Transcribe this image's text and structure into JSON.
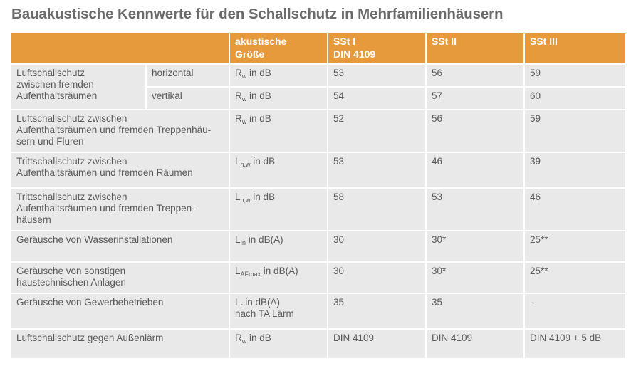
{
  "title": "Bauakustische Kennwerte für den Schallschutz in Mehrfamilienhäusern",
  "header": {
    "empty": "",
    "groesse_line1": "akustische",
    "groesse_line2": "Größe",
    "ssti_line1": "SSt I",
    "ssti_line2": "DIN 4109",
    "sstii": "SSt II",
    "sstiii": "SSt III"
  },
  "accent_color": "#e69a3b",
  "cell_color": "#e9e9e9",
  "rows": [
    {
      "label": [
        "Luftschallschutz",
        "zwischen fremden",
        "Aufenthaltsräumen"
      ],
      "sub_rows": [
        {
          "direction": "horizontal",
          "symbol": "R",
          "subscript": "w",
          "unit": "in dB",
          "ssti": "53",
          "sstii": "56",
          "sstiii": "59"
        },
        {
          "direction": "vertikal",
          "symbol": "R",
          "subscript": "w",
          "unit": "in dB",
          "ssti": "54",
          "sstii": "57",
          "sstiii": "60"
        }
      ]
    },
    {
      "label": [
        "Luftschallschutz zwischen",
        "Aufenthaltsräumen und fremden Treppenhäu-",
        "sern und Fluren"
      ],
      "symbol": "R",
      "subscript": "w",
      "unit": "in dB",
      "unit2": "",
      "ssti": "52",
      "sstii": "56",
      "sstiii": "59"
    },
    {
      "label": [
        "Trittschallschutz zwischen",
        "Aufenthaltsräumen und fremden Räumen"
      ],
      "symbol": "L",
      "subscript": "n,w",
      "unit": "in dB",
      "unit2": "",
      "ssti": "53",
      "sstii": "46",
      "sstiii": "39"
    },
    {
      "label": [
        "Trittschallschutz zwischen",
        "Aufenthaltsräumen und fremden Treppen-",
        "häusern"
      ],
      "symbol": "L",
      "subscript": "n,w",
      "unit": "in dB",
      "unit2": "",
      "ssti": "58",
      "sstii": "53",
      "sstiii": "46"
    },
    {
      "label": [
        "Geräusche von Wasserinstallationen"
      ],
      "symbol": "L",
      "subscript": "In",
      "unit": "in dB(A)",
      "unit2": "",
      "ssti": "30",
      "sstii": "30*",
      "sstiii": "25**"
    },
    {
      "label": [
        "Geräusche von sonstigen",
        "haustechnischen Anlagen"
      ],
      "symbol": "L",
      "subscript": "AFmax",
      "unit": "in dB(A)",
      "unit2": "",
      "ssti": "30",
      "sstii": "30*",
      "sstiii": "25**"
    },
    {
      "label": [
        "Geräusche von Gewerbebetrieben"
      ],
      "symbol": "L",
      "subscript": "r",
      "unit": "in dB(A)",
      "unit2": "nach TA Lärm",
      "ssti": "35",
      "sstii": "35",
      "sstiii": "-"
    },
    {
      "label": [
        "Luftschallschutz gegen Außenlärm"
      ],
      "symbol": "R",
      "subscript": "w",
      "unit": "in dB",
      "unit2": "",
      "ssti": "DIN 4109",
      "sstii": "DIN 4109",
      "sstiii": "DIN 4109 + 5 dB"
    }
  ]
}
